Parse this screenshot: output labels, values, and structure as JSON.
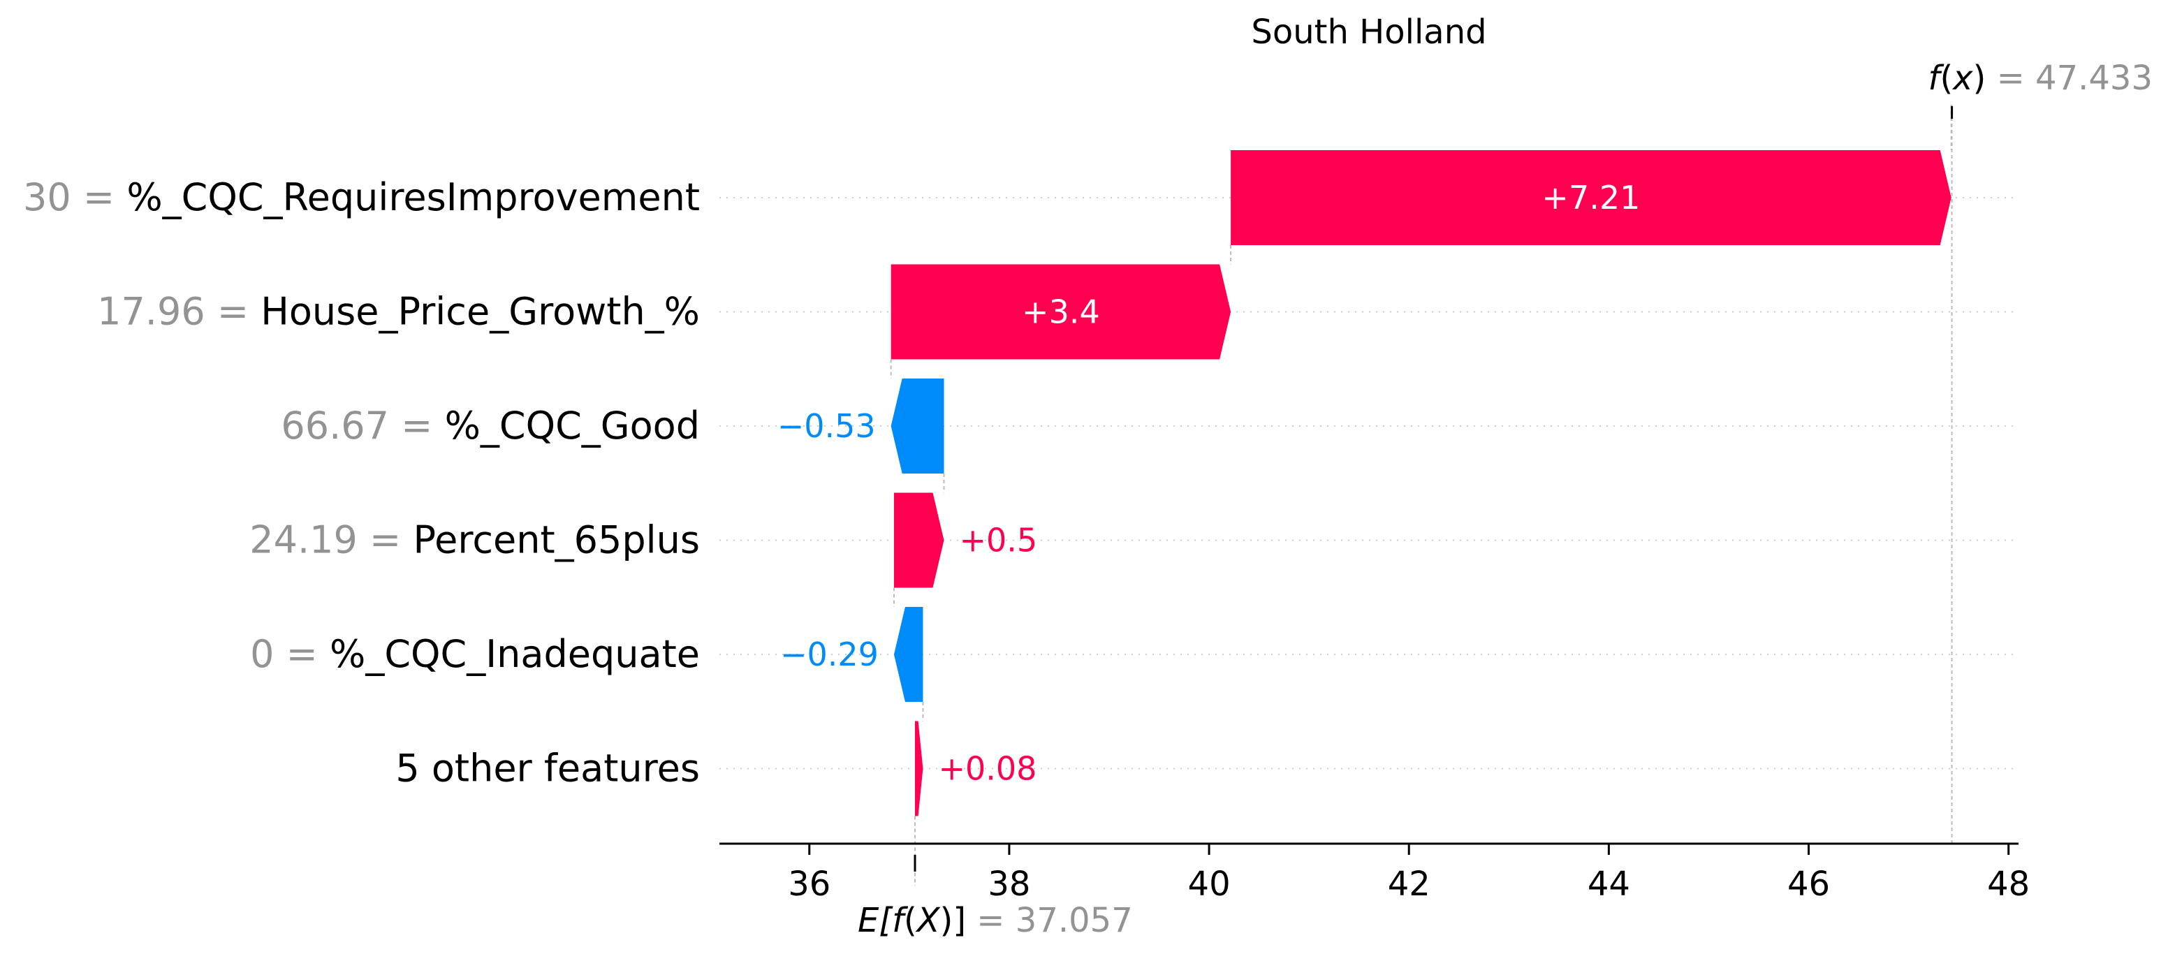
{
  "chart_data": {
    "type": "waterfall",
    "title": "South Holland",
    "base_value": 37.057,
    "output_value": 47.433,
    "base_value_label": "37.057",
    "output_value_label": "47.433",
    "base_label": {
      "prefix": "E[",
      "fn": "f",
      "open": "(",
      "arg": "X",
      "close": ")]",
      "eq": " = "
    },
    "output_label": {
      "fn": "f",
      "open": "(",
      "arg": "x",
      "close": ")",
      "eq": " = "
    },
    "features": [
      {
        "value": "30",
        "eq": " = ",
        "name": "%_CQC_RequiresImprovement",
        "contribution": 7.21,
        "label": "+7.21"
      },
      {
        "value": "17.96",
        "eq": " = ",
        "name": "House_Price_Growth_%",
        "contribution": 3.4,
        "label": "+3.4"
      },
      {
        "value": "66.67",
        "eq": " = ",
        "name": "%_CQC_Good",
        "contribution": -0.53,
        "label": "−0.53"
      },
      {
        "value": "24.19",
        "eq": " = ",
        "name": "Percent_65plus",
        "contribution": 0.5,
        "label": "+0.5"
      },
      {
        "value": "0",
        "eq": " = ",
        "name": "%_CQC_Inadequate",
        "contribution": -0.29,
        "label": "−0.29"
      },
      {
        "value": "",
        "eq": "",
        "name": "5 other features",
        "contribution": 0.08,
        "label": "+0.08"
      }
    ],
    "x_ticks": [
      36,
      38,
      40,
      42,
      44,
      46,
      48
    ],
    "xlim": [
      35.1,
      48.1
    ],
    "colors": {
      "positive": "#ff0051",
      "negative": "#008bfb",
      "axis": "#000000",
      "grid": "#cccccc",
      "muted_text": "#939393"
    }
  }
}
